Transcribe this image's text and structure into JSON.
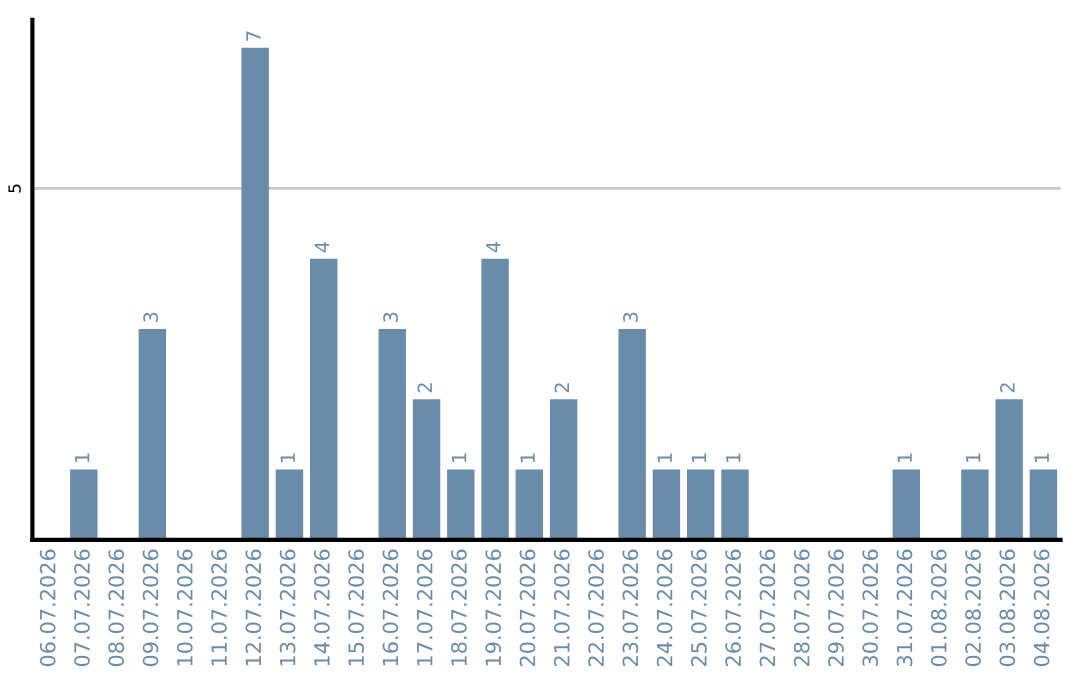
{
  "chart_data": {
    "type": "bar",
    "categories": [
      "06.07.2026",
      "07.07.2026",
      "08.07.2026",
      "09.07.2026",
      "10.07.2026",
      "11.07.2026",
      "12.07.2026",
      "13.07.2026",
      "14.07.2026",
      "15.07.2026",
      "16.07.2026",
      "17.07.2026",
      "18.07.2026",
      "19.07.2026",
      "20.07.2026",
      "21.07.2026",
      "22.07.2026",
      "23.07.2026",
      "24.07.2026",
      "25.07.2026",
      "26.07.2026",
      "27.07.2026",
      "28.07.2026",
      "29.07.2026",
      "30.07.2026",
      "31.07.2026",
      "01.08.2026",
      "02.08.2026",
      "03.08.2026",
      "04.08.2026"
    ],
    "values": [
      0,
      1,
      0,
      3,
      0,
      0,
      7,
      1,
      4,
      0,
      3,
      2,
      1,
      4,
      1,
      2,
      0,
      3,
      1,
      1,
      1,
      0,
      0,
      0,
      0,
      1,
      0,
      1,
      2,
      1
    ],
    "value_labels": [
      null,
      "1",
      null,
      "3",
      null,
      null,
      "7",
      "1",
      "4",
      null,
      "3",
      "2",
      "1",
      "4",
      "1",
      "2",
      null,
      "3",
      "1",
      "1",
      "1",
      null,
      null,
      null,
      null,
      "1",
      null,
      "1",
      "2",
      "1"
    ],
    "color": "#6a8cab",
    "ylim": [
      0,
      7.4
    ],
    "yticks": [
      5
    ],
    "grid": "y",
    "legend": false
  }
}
